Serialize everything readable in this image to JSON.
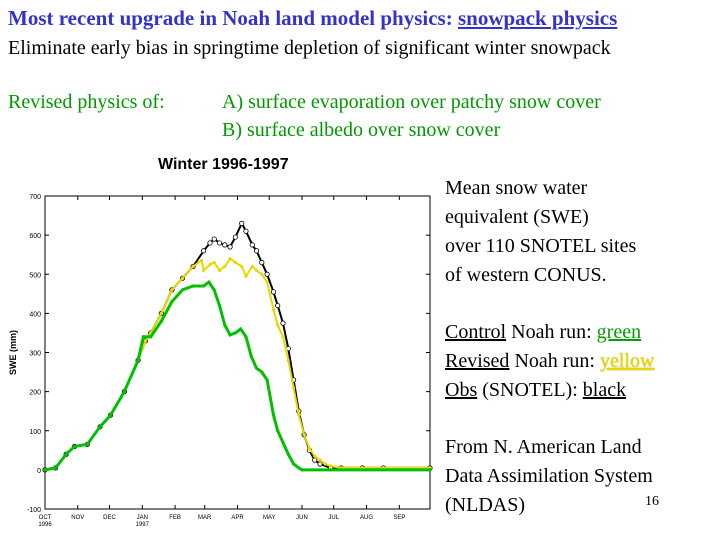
{
  "slide": {
    "title_prefix": "Most recent upgrade in Noah land model physics: ",
    "title_link": "snowpack physics",
    "subtitle": "Eliminate early bias in springtime depletion of significant winter snowpack",
    "revised_label": "Revised physics of:",
    "item_a": "A) surface evaporation over patchy snow cover",
    "item_b": "B) surface albedo over snow cover",
    "desc_lines": [
      "Mean snow water",
      "equivalent (SWE)",
      "over 110 SNOTEL sites",
      "of western CONUS."
    ],
    "legend": {
      "control_label": "Control",
      "control_text": " Noah run: ",
      "control_color": "green",
      "revised_label": "Revised",
      "revised_text": " Noah run: ",
      "revised_color": "yellow",
      "obs_label": "Obs",
      "obs_text": " (SNOTEL): ",
      "obs_color": "black"
    },
    "source_lines": [
      "From N. American Land",
      "Data Assimilation System",
      "(NLDAS)"
    ],
    "page_number": "16"
  },
  "colors": {
    "title": "#3333cc",
    "green_text": "#009900",
    "control": "#00c000",
    "revised": "#e8d800",
    "obs": "#000000"
  },
  "chart_data": {
    "type": "line",
    "title": "Winter 1996-1997",
    "xlabel": "",
    "ylabel": "SWE (mm)",
    "ylim": [
      -100,
      700
    ],
    "yticks": [
      -100,
      0,
      100,
      200,
      300,
      400,
      500,
      600,
      700
    ],
    "xlim": [
      0,
      364
    ],
    "xticks": [
      {
        "day": 0,
        "label": "OCT",
        "sub": "1996"
      },
      {
        "day": 31,
        "label": "NOV"
      },
      {
        "day": 61,
        "label": "DEC"
      },
      {
        "day": 92,
        "label": "JAN",
        "sub": "1997"
      },
      {
        "day": 123,
        "label": "FEB"
      },
      {
        "day": 151,
        "label": "MAR"
      },
      {
        "day": 182,
        "label": "APR"
      },
      {
        "day": 212,
        "label": "MAY"
      },
      {
        "day": 243,
        "label": "JUN"
      },
      {
        "day": 273,
        "label": "JUL"
      },
      {
        "day": 304,
        "label": "AUG"
      },
      {
        "day": 335,
        "label": "SEP"
      }
    ],
    "series": [
      {
        "name": "Obs (SNOTEL)",
        "color": "#000000",
        "x": [
          0,
          10,
          20,
          28,
          40,
          52,
          62,
          75,
          88,
          95,
          100,
          110,
          120,
          130,
          140,
          150,
          156,
          160,
          165,
          170,
          175,
          180,
          186,
          190,
          196,
          200,
          205,
          210,
          216,
          220,
          225,
          230,
          235,
          240,
          245,
          250,
          255,
          260,
          270,
          280,
          300,
          320,
          364
        ],
        "y": [
          0,
          5,
          40,
          60,
          65,
          110,
          140,
          200,
          280,
          330,
          350,
          400,
          460,
          490,
          520,
          560,
          580,
          590,
          580,
          575,
          570,
          595,
          630,
          610,
          575,
          560,
          530,
          500,
          455,
          420,
          375,
          310,
          230,
          150,
          90,
          50,
          25,
          15,
          5,
          5,
          5,
          5,
          5
        ]
      },
      {
        "name": "Revised Noah run",
        "color": "#e8d800",
        "x": [
          0,
          10,
          20,
          28,
          40,
          52,
          62,
          75,
          88,
          95,
          100,
          110,
          120,
          130,
          140,
          148,
          150,
          156,
          160,
          165,
          170,
          175,
          180,
          186,
          190,
          196,
          200,
          205,
          210,
          216,
          220,
          225,
          230,
          235,
          240,
          245,
          250,
          255,
          260,
          265,
          270,
          280,
          300,
          364
        ],
        "y": [
          0,
          5,
          40,
          60,
          65,
          110,
          140,
          200,
          280,
          330,
          350,
          400,
          460,
          490,
          520,
          535,
          510,
          525,
          530,
          510,
          520,
          540,
          530,
          520,
          495,
          520,
          510,
          500,
          480,
          410,
          370,
          340,
          280,
          210,
          140,
          90,
          55,
          35,
          25,
          15,
          10,
          5,
          5,
          5
        ]
      },
      {
        "name": "Control Noah run",
        "color": "#00c000",
        "x": [
          0,
          10,
          20,
          28,
          40,
          52,
          62,
          75,
          88,
          93,
          100,
          110,
          120,
          130,
          140,
          150,
          155,
          160,
          165,
          170,
          175,
          180,
          185,
          190,
          195,
          200,
          205,
          210,
          216,
          220,
          225,
          230,
          235,
          240,
          243,
          270,
          364
        ],
        "y": [
          0,
          5,
          40,
          60,
          65,
          110,
          140,
          200,
          280,
          340,
          340,
          380,
          430,
          460,
          470,
          470,
          480,
          460,
          420,
          370,
          345,
          350,
          360,
          340,
          290,
          260,
          250,
          230,
          140,
          100,
          70,
          40,
          15,
          5,
          0,
          0,
          0
        ]
      }
    ]
  }
}
